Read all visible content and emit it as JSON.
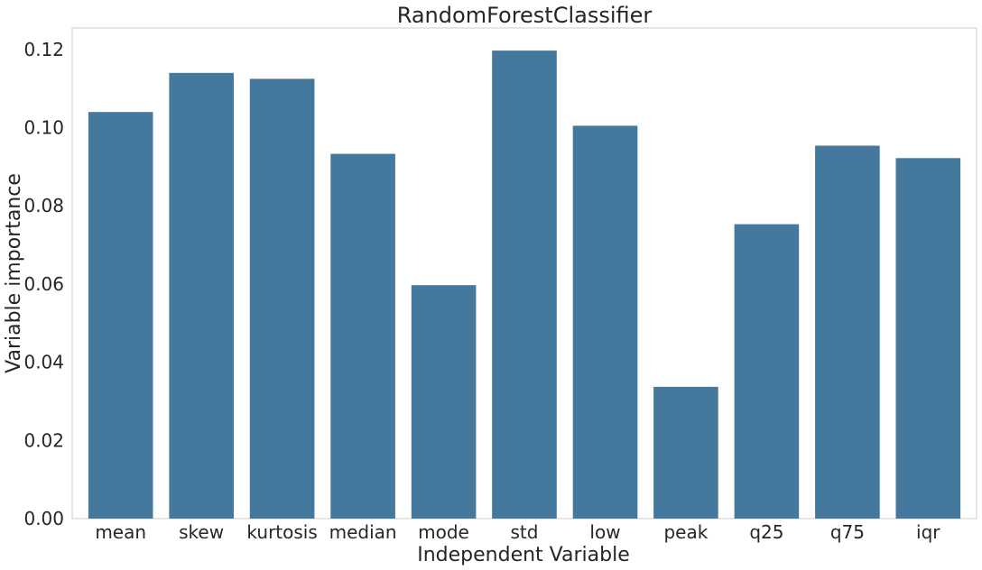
{
  "chart_data": {
    "type": "bar",
    "title": "RandomForestClassifier",
    "xlabel": "Independent Variable",
    "ylabel": "Variable importance",
    "categories": [
      "mean",
      "skew",
      "kurtosis",
      "median",
      "mode",
      "std",
      "low",
      "peak",
      "q25",
      "q75",
      "iqr"
    ],
    "values": [
      0.104,
      0.114,
      0.1125,
      0.0933,
      0.0597,
      0.1197,
      0.1005,
      0.0337,
      0.0753,
      0.0954,
      0.0922
    ],
    "ylim": [
      0,
      0.1255
    ],
    "yticks": [
      0.0,
      0.02,
      0.04,
      0.06,
      0.08,
      0.1,
      0.12
    ],
    "ytick_labels": [
      "0.00",
      "0.02",
      "0.04",
      "0.06",
      "0.08",
      "0.10",
      "0.12"
    ],
    "grid": false,
    "colors": {
      "bar": "#44789c"
    }
  }
}
